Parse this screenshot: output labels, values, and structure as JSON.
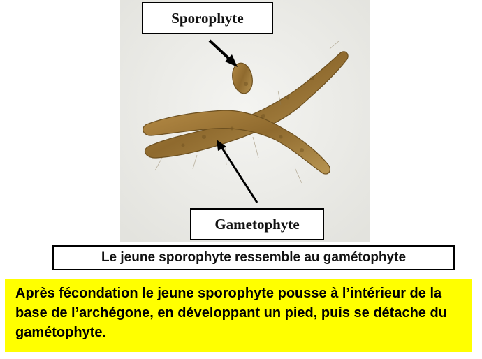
{
  "labels": {
    "sporophyte": "Sporophyte",
    "gametophyte": "Gametophyte"
  },
  "caption": "Le jeune sporophyte ressemble au gamétophyte",
  "note": "Après fécondation le jeune sporophyte pousse à l’intérieur  de la base de l’archégone, en développant un pied, puis se détache du gamétophyte.",
  "colors": {
    "note_background": "#ffff00",
    "plant_body": "#a67c3a",
    "photo_background": "#eeeeea"
  }
}
